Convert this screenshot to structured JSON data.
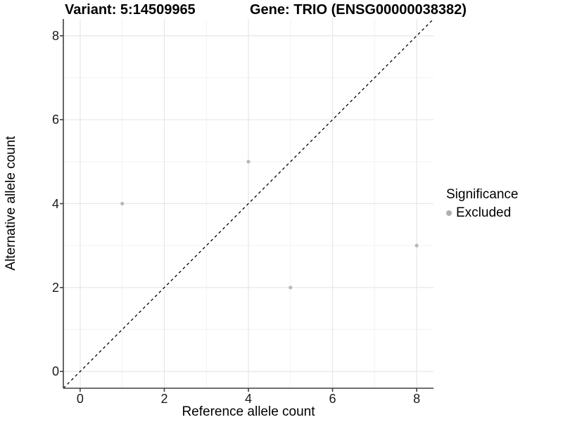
{
  "titles": {
    "variant": "Variant: 5:14509965",
    "gene": "Gene: TRIO (ENSG00000038382)"
  },
  "legend": {
    "title": "Significance",
    "items": [
      {
        "label": "Excluded",
        "color": "#b0b0b0"
      }
    ]
  },
  "colors": {
    "point": "#b8b8b8",
    "legend_dot": "#b0b0b0",
    "grid_major": "#e6e6e6",
    "grid_minor": "#f2f2f2",
    "axis_line": "#404040",
    "dashed_line": "#000000",
    "background": "#ffffff"
  },
  "chart_data": {
    "type": "scatter",
    "title": "Variant: 5:14509965 — Gene: TRIO (ENSG00000038382)",
    "xlabel": "Reference allele count",
    "ylabel": "Alternative allele count",
    "xlim": [
      -0.4,
      8.4
    ],
    "ylim": [
      -0.4,
      8.4
    ],
    "x_ticks": [
      0,
      2,
      4,
      6,
      8
    ],
    "y_ticks": [
      0,
      2,
      4,
      6,
      8
    ],
    "x_minor_ticks": [
      1,
      3,
      5,
      7
    ],
    "y_minor_ticks": [
      1,
      3,
      5,
      7
    ],
    "grid": true,
    "legend_position": "right",
    "series": [
      {
        "name": "Excluded",
        "color": "#b8b8b8",
        "points": [
          [
            1,
            4
          ],
          [
            4,
            5
          ],
          [
            5,
            2
          ],
          [
            8,
            3
          ]
        ]
      }
    ],
    "reference_line": {
      "type": "identity",
      "style": "dashed",
      "color": "#000000",
      "from": [
        -0.4,
        -0.4
      ],
      "to": [
        8.4,
        8.4
      ]
    }
  }
}
